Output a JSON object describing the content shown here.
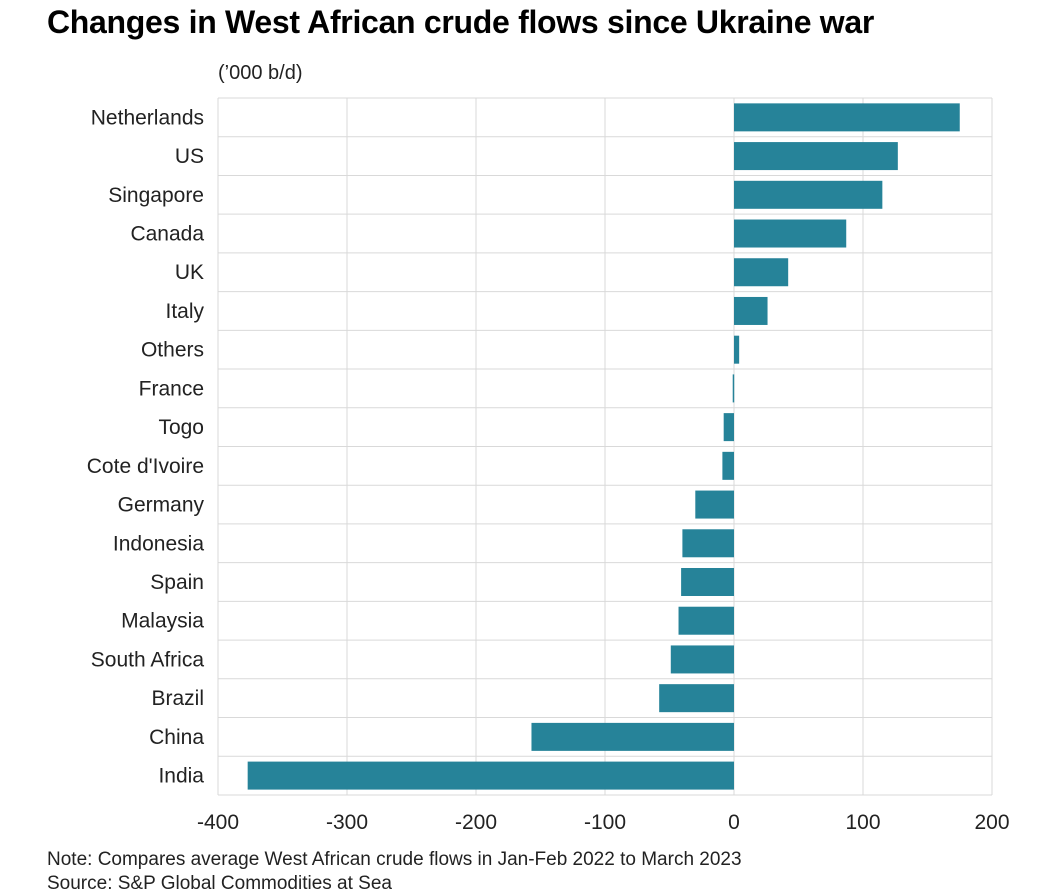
{
  "title": "Changes in West African crude flows since Ukraine war",
  "units_label": "(’000 b/d)",
  "note": "Note: Compares average West African crude flows in Jan-Feb 2022 to March 2023",
  "source": "Source: S&P Global Commodities at Sea",
  "colors": {
    "bar": "#268399",
    "grid": "#d9d9d9",
    "text": "#222222"
  },
  "chart_data": {
    "type": "bar",
    "orientation": "horizontal",
    "title": "Changes in West African crude flows since Ukraine war",
    "xlabel": "(’000 b/d)",
    "ylabel": "",
    "xlim": [
      -400,
      200
    ],
    "xticks": [
      -400,
      -300,
      -200,
      -100,
      0,
      100,
      200
    ],
    "grid": true,
    "categories": [
      "Netherlands",
      "US",
      "Singapore",
      "Canada",
      "UK",
      "Italy",
      "Others",
      "France",
      "Togo",
      "Cote d'Ivoire",
      "Germany",
      "Indonesia",
      "Spain",
      "Malaysia",
      "South Africa",
      "Brazil",
      "China",
      "India"
    ],
    "values": [
      175,
      127,
      115,
      87,
      42,
      26,
      4,
      -1,
      -8,
      -9,
      -30,
      -40,
      -41,
      -43,
      -49,
      -58,
      -157,
      -377
    ]
  }
}
